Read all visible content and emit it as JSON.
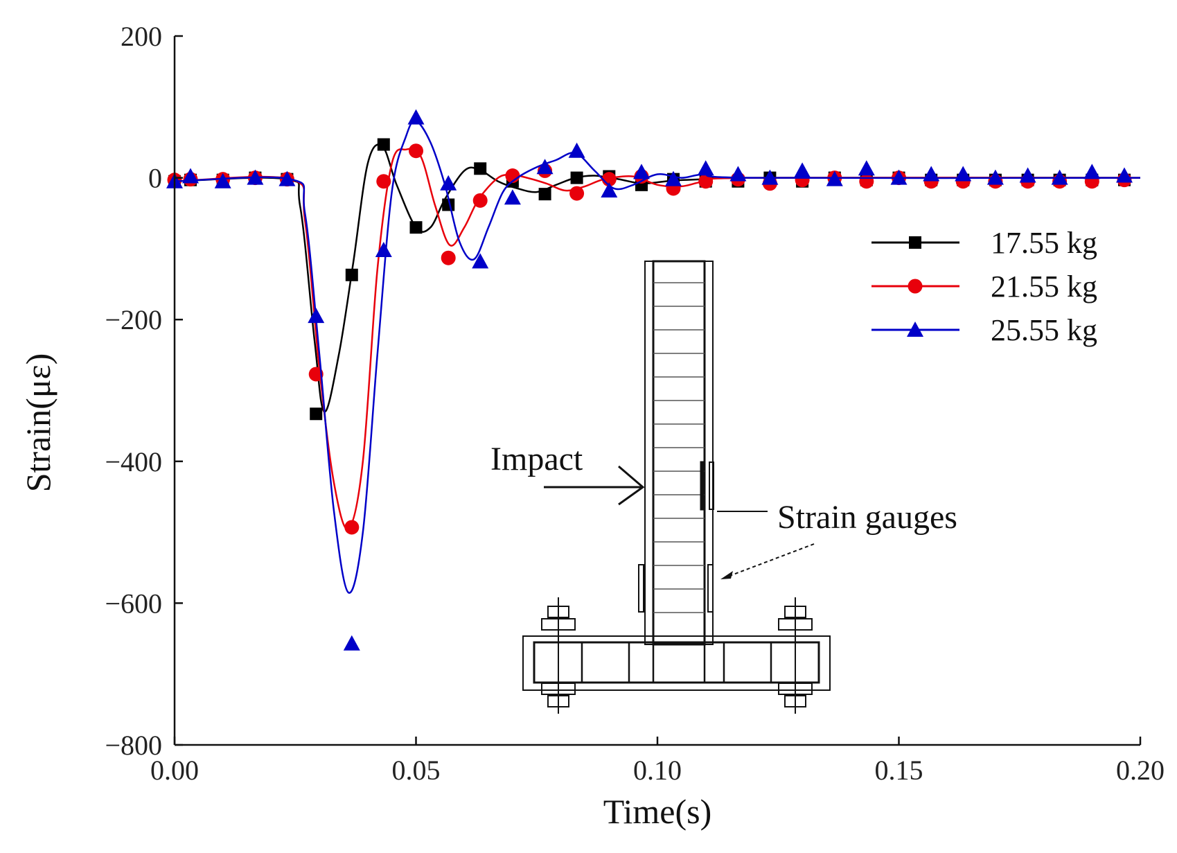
{
  "chart_data": {
    "type": "line",
    "title": "",
    "xlabel": "Time(s)",
    "ylabel": "Strain(με)",
    "xlim": [
      0.0,
      0.2
    ],
    "ylim": [
      -800,
      200
    ],
    "grid": false,
    "xticks": [
      0.0,
      0.05,
      0.1,
      0.15,
      0.2
    ],
    "xtick_labels": [
      "0.00",
      "0.05",
      "0.10",
      "0.15",
      "0.20"
    ],
    "yticks": [
      200,
      0,
      -200,
      -400,
      -600,
      -800
    ],
    "ytick_labels": [
      "200",
      "0",
      "−200",
      "−400",
      "−600",
      "−800"
    ],
    "legend_position": "right",
    "series": [
      {
        "name": "17.55 kg",
        "color": "#000000",
        "marker": "square",
        "curve": [
          [
            0,
            -5
          ],
          [
            0.023,
            -2
          ],
          [
            0.026,
            -40
          ],
          [
            0.029,
            -230
          ],
          [
            0.031,
            -330
          ],
          [
            0.034,
            -250
          ],
          [
            0.037,
            -120
          ],
          [
            0.04,
            20
          ],
          [
            0.043,
            45
          ],
          [
            0.046,
            -10
          ],
          [
            0.05,
            -70
          ],
          [
            0.053,
            -70
          ],
          [
            0.056,
            -30
          ],
          [
            0.06,
            10
          ],
          [
            0.063,
            12
          ],
          [
            0.067,
            -5
          ],
          [
            0.071,
            -15
          ],
          [
            0.075,
            -20
          ],
          [
            0.079,
            -10
          ],
          [
            0.083,
            0
          ],
          [
            0.087,
            3
          ],
          [
            0.092,
            -2
          ],
          [
            0.097,
            -8
          ],
          [
            0.103,
            -4
          ],
          [
            0.11,
            -2
          ],
          [
            0.12,
            0
          ],
          [
            0.2,
            0
          ]
        ],
        "points": [
          [
            0.0,
            -5
          ],
          [
            0.0033,
            -3
          ],
          [
            0.01,
            -3
          ],
          [
            0.0167,
            0
          ],
          [
            0.0233,
            -2
          ],
          [
            0.0293,
            -333
          ],
          [
            0.0367,
            -137
          ],
          [
            0.0433,
            47
          ],
          [
            0.05,
            -70
          ],
          [
            0.0567,
            -38
          ],
          [
            0.0633,
            13
          ],
          [
            0.07,
            -5
          ],
          [
            0.0767,
            -23
          ],
          [
            0.0833,
            0
          ],
          [
            0.09,
            2
          ],
          [
            0.0967,
            -10
          ],
          [
            0.1033,
            -2
          ],
          [
            0.11,
            -5
          ],
          [
            0.1167,
            -5
          ],
          [
            0.1233,
            0
          ],
          [
            0.13,
            -5
          ],
          [
            0.1367,
            0
          ],
          [
            0.1433,
            -3
          ],
          [
            0.15,
            0
          ],
          [
            0.1567,
            -3
          ],
          [
            0.1633,
            -3
          ],
          [
            0.17,
            -3
          ],
          [
            0.1767,
            -3
          ],
          [
            0.1833,
            -3
          ],
          [
            0.19,
            -3
          ],
          [
            0.1967,
            -3
          ]
        ]
      },
      {
        "name": "21.55 kg",
        "color": "#e8000b",
        "marker": "circle",
        "curve": [
          [
            0,
            -5
          ],
          [
            0.024,
            -2
          ],
          [
            0.027,
            -60
          ],
          [
            0.03,
            -270
          ],
          [
            0.033,
            -430
          ],
          [
            0.036,
            -495
          ],
          [
            0.039,
            -400
          ],
          [
            0.042,
            -130
          ],
          [
            0.045,
            20
          ],
          [
            0.048,
            40
          ],
          [
            0.051,
            30
          ],
          [
            0.054,
            -40
          ],
          [
            0.057,
            -95
          ],
          [
            0.06,
            -70
          ],
          [
            0.063,
            -30
          ],
          [
            0.067,
            0
          ],
          [
            0.07,
            4
          ],
          [
            0.073,
            0
          ],
          [
            0.077,
            -8
          ],
          [
            0.081,
            -18
          ],
          [
            0.085,
            -12
          ],
          [
            0.089,
            -2
          ],
          [
            0.095,
            2
          ],
          [
            0.1,
            -10
          ],
          [
            0.105,
            -12
          ],
          [
            0.11,
            -5
          ],
          [
            0.12,
            0
          ],
          [
            0.2,
            0
          ]
        ],
        "points": [
          [
            0.0,
            -3
          ],
          [
            0.0033,
            -2
          ],
          [
            0.01,
            -2
          ],
          [
            0.0167,
            0
          ],
          [
            0.0233,
            -2
          ],
          [
            0.0293,
            -277
          ],
          [
            0.0367,
            -493
          ],
          [
            0.0433,
            -5
          ],
          [
            0.05,
            38
          ],
          [
            0.0567,
            -113
          ],
          [
            0.0633,
            -32
          ],
          [
            0.07,
            3
          ],
          [
            0.0767,
            10
          ],
          [
            0.0833,
            -22
          ],
          [
            0.09,
            -2
          ],
          [
            0.0967,
            2
          ],
          [
            0.1033,
            -15
          ],
          [
            0.11,
            -5
          ],
          [
            0.1167,
            -2
          ],
          [
            0.1233,
            -8
          ],
          [
            0.13,
            -3
          ],
          [
            0.1367,
            0
          ],
          [
            0.1433,
            -5
          ],
          [
            0.15,
            0
          ],
          [
            0.1567,
            -5
          ],
          [
            0.1633,
            -5
          ],
          [
            0.17,
            -5
          ],
          [
            0.1767,
            -5
          ],
          [
            0.1833,
            -5
          ],
          [
            0.19,
            -5
          ],
          [
            0.1967,
            -3
          ]
        ]
      },
      {
        "name": "25.55 kg",
        "color": "#0000c8",
        "marker": "triangle",
        "curve": [
          [
            0,
            -5
          ],
          [
            0.024,
            -2
          ],
          [
            0.027,
            -50
          ],
          [
            0.03,
            -250
          ],
          [
            0.033,
            -470
          ],
          [
            0.036,
            -585
          ],
          [
            0.039,
            -500
          ],
          [
            0.042,
            -250
          ],
          [
            0.045,
            -20
          ],
          [
            0.048,
            60
          ],
          [
            0.05,
            80
          ],
          [
            0.053,
            50
          ],
          [
            0.056,
            -10
          ],
          [
            0.059,
            -90
          ],
          [
            0.062,
            -115
          ],
          [
            0.065,
            -70
          ],
          [
            0.068,
            -20
          ],
          [
            0.071,
            0
          ],
          [
            0.075,
            15
          ],
          [
            0.079,
            25
          ],
          [
            0.083,
            35
          ],
          [
            0.087,
            10
          ],
          [
            0.091,
            -15
          ],
          [
            0.095,
            -10
          ],
          [
            0.1,
            5
          ],
          [
            0.105,
            0
          ],
          [
            0.11,
            5
          ],
          [
            0.12,
            0
          ],
          [
            0.2,
            0
          ]
        ],
        "points": [
          [
            0.0,
            -5
          ],
          [
            0.0033,
            2
          ],
          [
            0.01,
            -5
          ],
          [
            0.0167,
            0
          ],
          [
            0.0233,
            -2
          ],
          [
            0.0293,
            -195
          ],
          [
            0.0367,
            -657
          ],
          [
            0.0433,
            -102
          ],
          [
            0.05,
            85
          ],
          [
            0.0567,
            -8
          ],
          [
            0.0633,
            -118
          ],
          [
            0.07,
            -28
          ],
          [
            0.0767,
            15
          ],
          [
            0.0833,
            38
          ],
          [
            0.09,
            -18
          ],
          [
            0.0967,
            8
          ],
          [
            0.1033,
            -2
          ],
          [
            0.11,
            13
          ],
          [
            0.1167,
            5
          ],
          [
            0.1233,
            0
          ],
          [
            0.13,
            10
          ],
          [
            0.1367,
            -2
          ],
          [
            0.1433,
            13
          ],
          [
            0.15,
            0
          ],
          [
            0.1567,
            5
          ],
          [
            0.1633,
            5
          ],
          [
            0.17,
            0
          ],
          [
            0.1767,
            3
          ],
          [
            0.1833,
            0
          ],
          [
            0.19,
            8
          ],
          [
            0.1967,
            3
          ]
        ]
      }
    ],
    "annotations": [
      "Impact",
      "Strain gauges"
    ]
  }
}
